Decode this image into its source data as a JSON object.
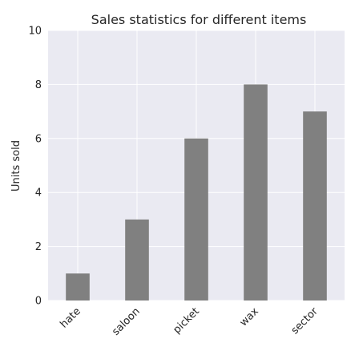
{
  "chart_data": {
    "type": "bar",
    "title": "Sales statistics for different items",
    "xlabel": "",
    "ylabel": "Units sold",
    "categories": [
      "hate",
      "saloon",
      "picket",
      "wax",
      "sector"
    ],
    "values": [
      1,
      3,
      6,
      8,
      7
    ],
    "ylim": [
      0,
      10
    ],
    "yticks": [
      0,
      2,
      4,
      6,
      8,
      10
    ],
    "grid": true,
    "legend": "none",
    "colors": {
      "bar": "#808080",
      "plot_background": "#eaeaf2",
      "grid": "#ffffff",
      "text": "#262626"
    }
  }
}
